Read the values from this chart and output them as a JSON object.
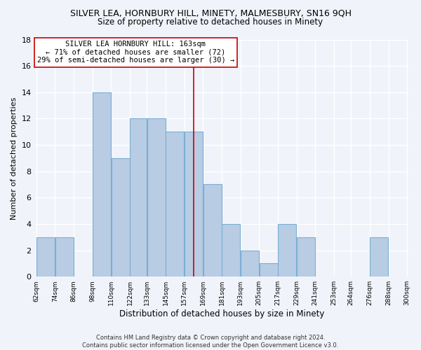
{
  "title": "SILVER LEA, HORNBURY HILL, MINETY, MALMESBURY, SN16 9QH",
  "subtitle": "Size of property relative to detached houses in Minety",
  "xlabel": "Distribution of detached houses by size in Minety",
  "ylabel": "Number of detached properties",
  "bin_edges": [
    62,
    74,
    86,
    98,
    110,
    122,
    133,
    145,
    157,
    169,
    181,
    193,
    205,
    217,
    229,
    241,
    253,
    264,
    276,
    288,
    300
  ],
  "counts": [
    3,
    3,
    0,
    14,
    9,
    12,
    12,
    11,
    11,
    7,
    4,
    2,
    1,
    4,
    3,
    0,
    0,
    0,
    3,
    0
  ],
  "tick_labels": [
    "62sqm",
    "74sqm",
    "86sqm",
    "98sqm",
    "110sqm",
    "122sqm",
    "133sqm",
    "145sqm",
    "157sqm",
    "169sqm",
    "181sqm",
    "193sqm",
    "205sqm",
    "217sqm",
    "229sqm",
    "241sqm",
    "253sqm",
    "264sqm",
    "276sqm",
    "288sqm",
    "300sqm"
  ],
  "bar_color": "#b8cce4",
  "bar_edge_color": "#7bafd4",
  "ref_line_x": 163,
  "ref_line_color": "#cc0000",
  "annotation_line1": "SILVER LEA HORNBURY HILL: 163sqm",
  "annotation_line2": "← 71% of detached houses are smaller (72)",
  "annotation_line3": "29% of semi-detached houses are larger (30) →",
  "ylim": [
    0,
    18
  ],
  "yticks": [
    0,
    2,
    4,
    6,
    8,
    10,
    12,
    14,
    16,
    18
  ],
  "footer": "Contains HM Land Registry data © Crown copyright and database right 2024.\nContains public sector information licensed under the Open Government Licence v3.0.",
  "bg_color": "#f0f4fa",
  "grid_color": "#ffffff",
  "title_fontsize": 9,
  "subtitle_fontsize": 8.5
}
